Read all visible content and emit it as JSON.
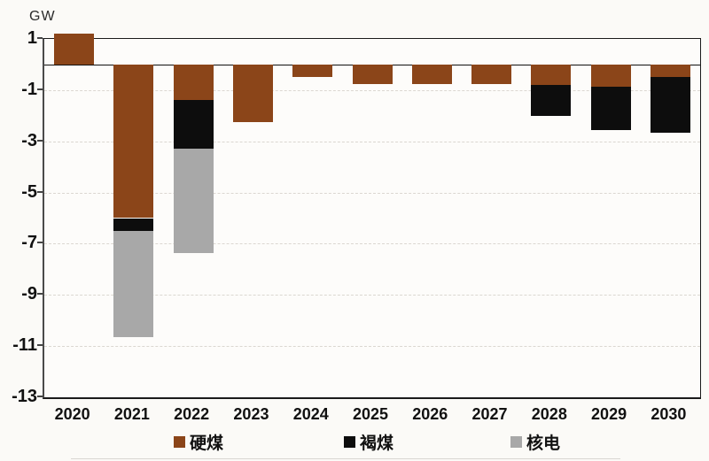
{
  "chart": {
    "unit": "GW"
  },
  "chart_data": {
    "type": "bar",
    "stacked": true,
    "title": "",
    "ylabel": "GW",
    "xlabel": "",
    "categories": [
      "2020",
      "2021",
      "2022",
      "2023",
      "2024",
      "2025",
      "2026",
      "2027",
      "2028",
      "2029",
      "2030"
    ],
    "series": [
      {
        "name": "硬煤",
        "color": "#8B4519",
        "values": [
          1.2,
          -6.0,
          -1.4,
          -2.25,
          -0.5,
          -0.75,
          -0.75,
          -0.75,
          -0.8,
          -0.85,
          -0.5
        ]
      },
      {
        "name": "褐煤",
        "color": "#0D0D0D",
        "values": [
          0,
          -0.5,
          -1.9,
          0,
          0,
          0,
          0,
          0,
          -1.2,
          -1.7,
          -2.15
        ]
      },
      {
        "name": "核电",
        "color": "#A8A8A8",
        "values": [
          0,
          -4.15,
          -4.05,
          0,
          0,
          0,
          0,
          0,
          0,
          0,
          0
        ]
      }
    ],
    "ylim": [
      -13,
      1
    ],
    "yticks": [
      1,
      -1,
      -3,
      -5,
      -7,
      -9,
      -11,
      -13
    ],
    "grid": "horizontal-dashed",
    "legend_position": "bottom"
  }
}
